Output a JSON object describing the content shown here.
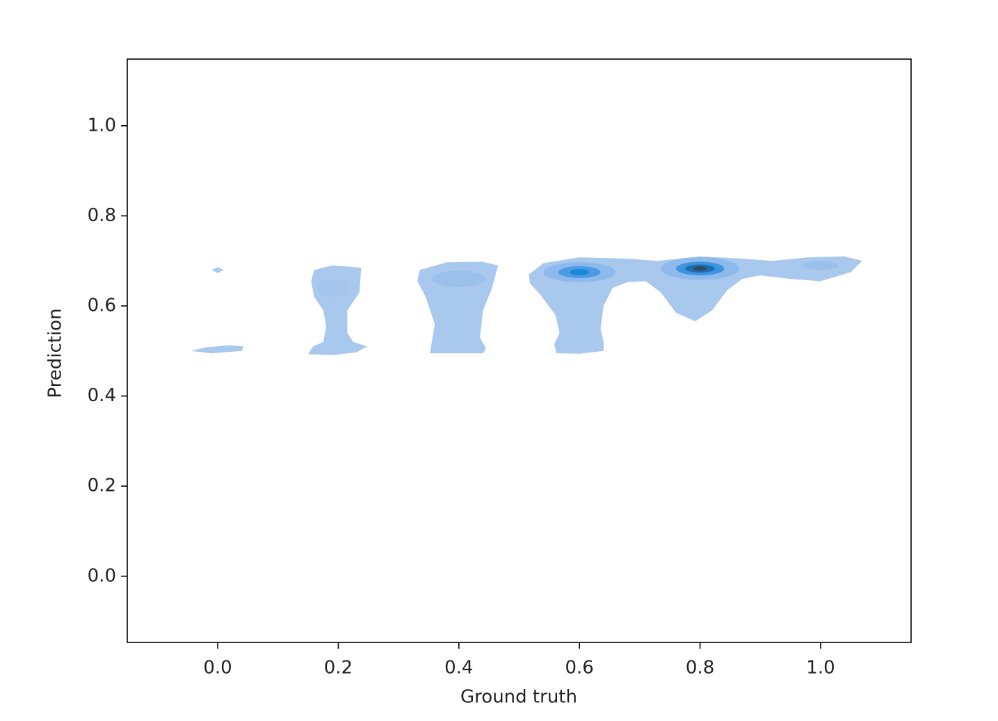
{
  "chart_data": {
    "type": "kde",
    "xlabel": "Ground truth",
    "ylabel": "Prediction",
    "xlim": [
      -0.15,
      1.15
    ],
    "ylim": [
      -0.147,
      1.148
    ],
    "xticks": [
      {
        "value": 0,
        "label": "0.0"
      },
      {
        "value": 0.2,
        "label": "0.2"
      },
      {
        "value": 0.4,
        "label": "0.4"
      },
      {
        "value": 0.6,
        "label": "0.6"
      },
      {
        "value": 0.8,
        "label": "0.8"
      },
      {
        "value": 1,
        "label": "1.0"
      }
    ],
    "yticks": [
      {
        "value": 0,
        "label": "0.0"
      },
      {
        "value": 0.2,
        "label": "0.2"
      },
      {
        "value": 0.4,
        "label": "0.4"
      },
      {
        "value": 0.6,
        "label": "0.6"
      },
      {
        "value": 0.8,
        "label": "0.8"
      },
      {
        "value": 1,
        "label": "1.0"
      }
    ],
    "color": "#a9c8ee",
    "contours": [
      {
        "x": [
          -0.01,
          0.0,
          0.01,
          0.0
        ],
        "y": [
          0.68,
          0.686,
          0.68,
          0.673
        ]
      },
      {
        "x": [
          -0.045,
          -0.02,
          0.02,
          0.043,
          0.04,
          -0.01
        ],
        "y": [
          0.5,
          0.508,
          0.513,
          0.51,
          0.5,
          0.495
        ]
      },
      {
        "x": [
          0.16,
          0.19,
          0.238,
          0.235,
          0.215,
          0.215,
          0.225,
          0.248,
          0.23,
          0.19,
          0.15,
          0.158,
          0.175,
          0.18,
          0.175,
          0.16,
          0.155
        ],
        "y": [
          0.68,
          0.69,
          0.685,
          0.63,
          0.59,
          0.54,
          0.52,
          0.51,
          0.497,
          0.491,
          0.493,
          0.51,
          0.52,
          0.555,
          0.59,
          0.62,
          0.655
        ]
      },
      {
        "x": [
          0.335,
          0.38,
          0.44,
          0.465,
          0.455,
          0.44,
          0.435,
          0.445,
          0.44,
          0.352,
          0.355,
          0.36,
          0.345,
          0.331
        ],
        "y": [
          0.68,
          0.697,
          0.698,
          0.69,
          0.64,
          0.59,
          0.53,
          0.505,
          0.495,
          0.495,
          0.52,
          0.56,
          0.62,
          0.655
        ]
      },
      {
        "x": [
          0.516,
          0.54,
          0.6,
          0.68,
          0.73,
          0.8,
          0.87,
          0.92,
          0.98,
          1.04,
          1.069,
          1.05,
          1.0,
          0.95,
          0.9,
          0.87,
          0.845,
          0.82,
          0.792,
          0.76,
          0.735,
          0.71,
          0.68,
          0.655,
          0.64,
          0.635,
          0.64,
          0.64,
          0.6,
          0.562,
          0.558,
          0.567,
          0.56,
          0.535,
          0.518
        ],
        "y": [
          0.67,
          0.695,
          0.708,
          0.705,
          0.7,
          0.71,
          0.705,
          0.7,
          0.708,
          0.71,
          0.7,
          0.675,
          0.655,
          0.66,
          0.668,
          0.66,
          0.635,
          0.59,
          0.566,
          0.585,
          0.63,
          0.655,
          0.653,
          0.64,
          0.6,
          0.55,
          0.52,
          0.5,
          0.494,
          0.495,
          0.515,
          0.54,
          0.58,
          0.625,
          0.65
        ]
      }
    ],
    "levels": [
      {
        "x": 0.19,
        "y": 0.64,
        "rx": 0.025,
        "ry": 0.02,
        "color": "#a3c4ed"
      },
      {
        "x": 0.4,
        "y": 0.66,
        "rx": 0.045,
        "ry": 0.018,
        "color": "#9cc0ec"
      },
      {
        "x": 0.6,
        "y": 0.675,
        "rx": 0.06,
        "ry": 0.022,
        "color": "#8db9ec"
      },
      {
        "x": 0.6,
        "y": 0.675,
        "rx": 0.035,
        "ry": 0.013,
        "color": "#4a9be3"
      },
      {
        "x": 0.6,
        "y": 0.675,
        "rx": 0.016,
        "ry": 0.007,
        "color": "#1e88d8"
      },
      {
        "x": 0.8,
        "y": 0.683,
        "rx": 0.065,
        "ry": 0.025,
        "color": "#8db9ec"
      },
      {
        "x": 0.8,
        "y": 0.683,
        "rx": 0.04,
        "ry": 0.015,
        "color": "#3d95e0"
      },
      {
        "x": 0.8,
        "y": 0.683,
        "rx": 0.025,
        "ry": 0.009,
        "color": "#1f6fb0"
      },
      {
        "x": 0.8,
        "y": 0.683,
        "rx": 0.012,
        "ry": 0.005,
        "color": "#344a63"
      },
      {
        "x": 1.0,
        "y": 0.69,
        "rx": 0.03,
        "ry": 0.01,
        "color": "#9cc0ec"
      }
    ]
  }
}
